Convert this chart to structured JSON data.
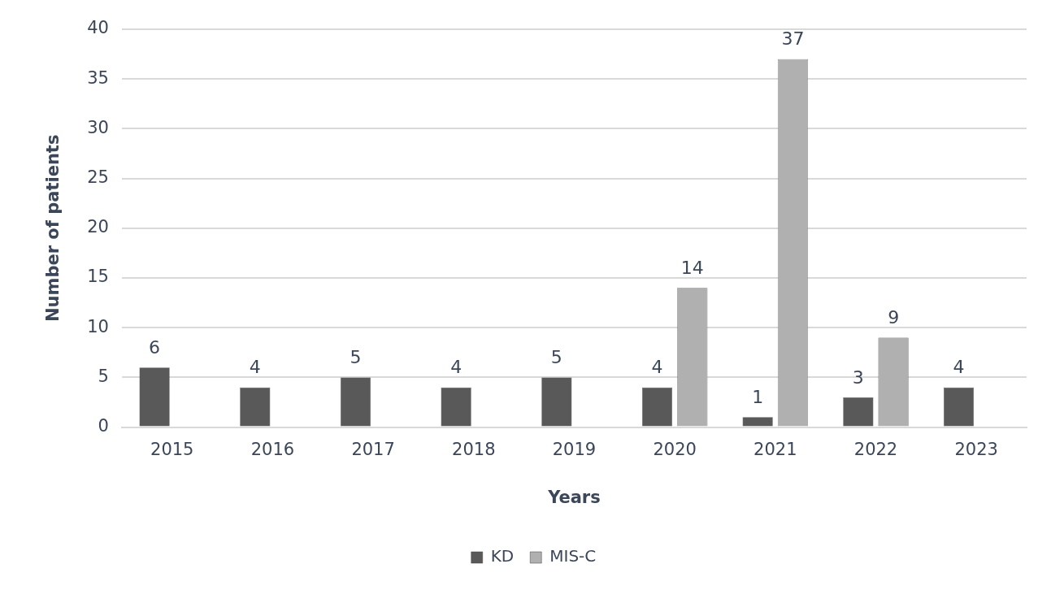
{
  "chart_data": {
    "type": "bar",
    "xlabel": "Years",
    "ylabel": "Number of patients",
    "categories": [
      "2015",
      "2016",
      "2017",
      "2018",
      "2019",
      "2020",
      "2021",
      "2022",
      "2023"
    ],
    "series": [
      {
        "name": "KD",
        "color": "#595959",
        "values": [
          6,
          4,
          5,
          4,
          5,
          4,
          1,
          3,
          4
        ]
      },
      {
        "name": "MIS-C",
        "color": "#b0b0b0",
        "values": [
          null,
          null,
          null,
          null,
          null,
          14,
          37,
          9,
          null
        ]
      }
    ],
    "ylim": [
      0,
      40
    ],
    "yticks": [
      0,
      5,
      10,
      15,
      20,
      25,
      30,
      35,
      40
    ],
    "grid": "y",
    "legend": "bottom",
    "data_labels": true
  }
}
